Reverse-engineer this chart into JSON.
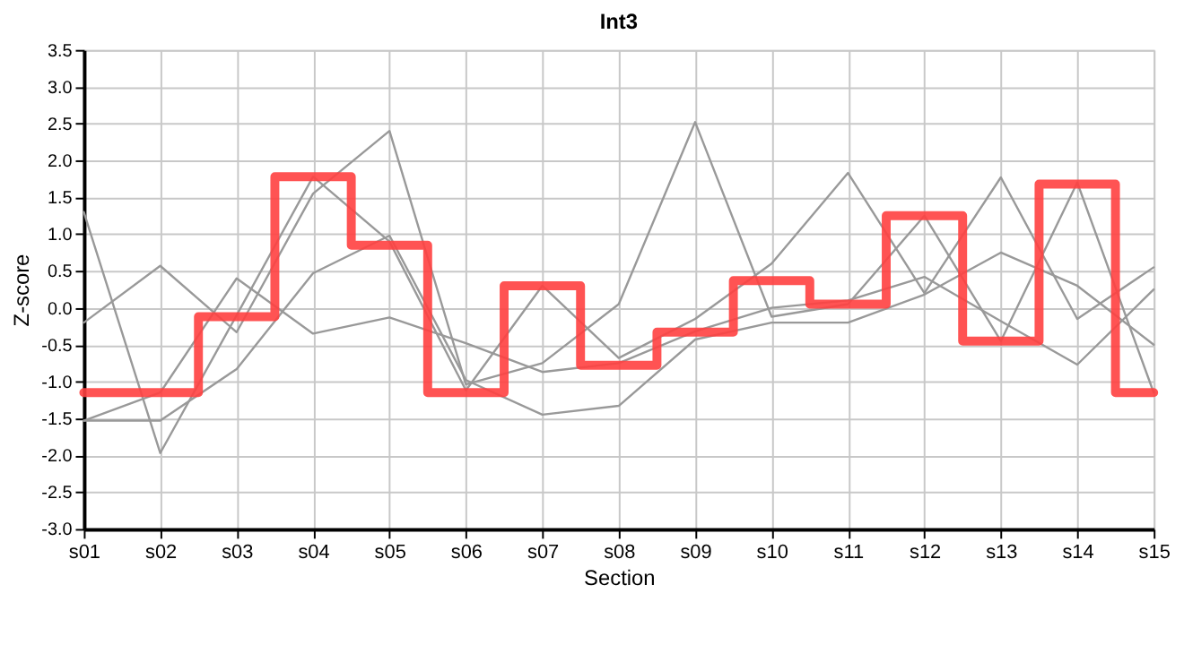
{
  "chart_data": {
    "type": "line",
    "title": "Int3",
    "xlabel": "Section",
    "ylabel": "Z-score",
    "categories": [
      "s01",
      "s02",
      "s03",
      "s04",
      "s05",
      "s06",
      "s07",
      "s08",
      "s09",
      "s10",
      "s11",
      "s12",
      "s13",
      "s14",
      "s15"
    ],
    "series": [
      {
        "type": "line",
        "color": "#999999",
        "values": [
          1.3,
          -1.97,
          -0.1,
          1.78,
          0.9,
          -1.12,
          0.3,
          -0.68,
          -0.15,
          0.6,
          1.83,
          0.2,
          1.77,
          -0.15,
          0.55
        ]
      },
      {
        "type": "line",
        "color": "#999999",
        "values": [
          -0.2,
          0.57,
          -0.33,
          1.55,
          2.4,
          -1.04,
          -0.75,
          0.05,
          2.52,
          -0.12,
          0.05,
          1.25,
          -0.45,
          1.7,
          -1.15
        ]
      },
      {
        "type": "line",
        "color": "#999999",
        "values": [
          -1.53,
          -1.15,
          0.4,
          -0.35,
          -0.13,
          -0.48,
          -0.87,
          -0.75,
          -0.32,
          0.0,
          0.1,
          0.42,
          -0.18,
          -0.77,
          0.25
        ]
      },
      {
        "type": "line",
        "color": "#999999",
        "values": [
          -1.53,
          -1.53,
          -0.83,
          0.47,
          0.98,
          -0.98,
          -1.45,
          -1.33,
          -0.43,
          -0.2,
          -0.2,
          0.18,
          0.75,
          0.3,
          -0.5
        ]
      },
      {
        "type": "step",
        "color": "#ff4040",
        "values": [
          -1.15,
          -1.15,
          -0.12,
          1.78,
          0.85,
          -1.15,
          0.3,
          -0.78,
          -0.33,
          0.37,
          0.05,
          1.25,
          -0.45,
          1.68,
          -1.15
        ]
      }
    ],
    "ylim": [
      -3.0,
      3.5
    ],
    "yticks": [
      {
        "value": -3,
        "label": "-3.0"
      },
      {
        "value": -2.5,
        "label": "-2.5"
      },
      {
        "value": -2,
        "label": "-2.0"
      },
      {
        "value": -1.5,
        "label": "-1.5"
      },
      {
        "value": -1,
        "label": "-1.0"
      },
      {
        "value": -0.5,
        "label": "-0.5"
      },
      {
        "value": 0,
        "label": "0.0"
      },
      {
        "value": 0.5,
        "label": "0.5"
      },
      {
        "value": 1,
        "label": "1.0"
      },
      {
        "value": 1.5,
        "label": "1.5"
      },
      {
        "value": 2,
        "label": "2.0"
      },
      {
        "value": 2.5,
        "label": "2.5"
      },
      {
        "value": 3,
        "label": "3.0"
      },
      {
        "value": 3.5,
        "label": "3.5"
      }
    ],
    "grid": true,
    "legend": false
  }
}
